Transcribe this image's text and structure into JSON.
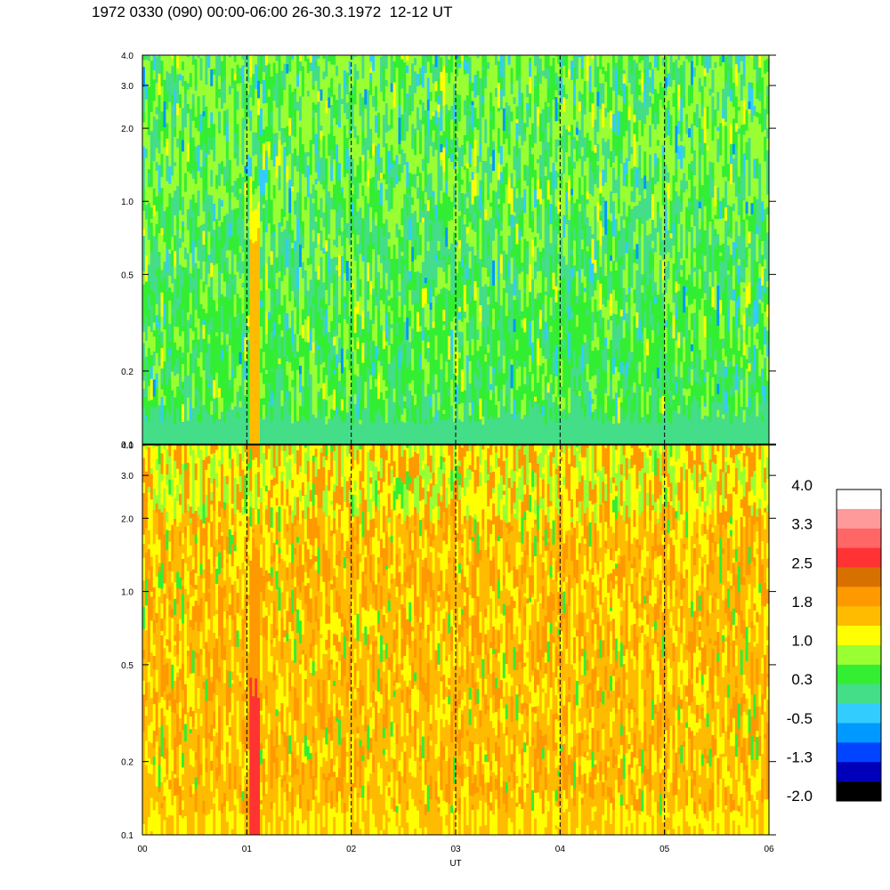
{
  "title": "1972 0330 (090) 00:00-06:00 26-30.3.1972  12-12 UT",
  "chart_data": [
    {
      "type": "heatmap",
      "name": "top-panel",
      "x_range": [
        0,
        6
      ],
      "y_scale": "log",
      "y_range": [
        0.1,
        4.0
      ],
      "y_ticks": [
        "0.1",
        "0.2",
        "0.5",
        "1.0",
        "2.0",
        "3.0",
        "4.0"
      ],
      "dominant_levels": [
        0.3,
        0.6,
        1.0
      ],
      "bright_band_x": [
        1.02,
        1.12
      ]
    },
    {
      "type": "heatmap",
      "name": "bottom-panel",
      "x_range": [
        0,
        6
      ],
      "y_scale": "log",
      "y_range": [
        0.1,
        4.0
      ],
      "y_ticks": [
        "0.1",
        "0.2",
        "0.5",
        "1.0",
        "2.0",
        "3.0",
        "4.0"
      ],
      "dominant_levels": [
        1.0,
        1.6,
        2.0
      ],
      "bright_band_x": [
        1.02,
        1.12
      ]
    }
  ],
  "x_axis": {
    "label": "UT",
    "ticks": [
      "00",
      "01",
      "02",
      "03",
      "04",
      "05",
      "06"
    ],
    "dashed_lines_at": [
      1,
      2,
      3,
      4,
      5
    ]
  },
  "colorbar": {
    "labels": [
      "4.0",
      "3.3",
      "2.5",
      "1.8",
      "1.0",
      "0.3",
      "-0.5",
      "-1.3",
      "-2.0"
    ],
    "colors": [
      "#ffffff",
      "#ff9a9a",
      "#ff6666",
      "#ff3333",
      "#d87000",
      "#ff9900",
      "#ffbb00",
      "#ffff00",
      "#99ff33",
      "#33ee33",
      "#44dd88",
      "#33ccff",
      "#0099ff",
      "#0044ff",
      "#0000bb",
      "#000000"
    ]
  }
}
